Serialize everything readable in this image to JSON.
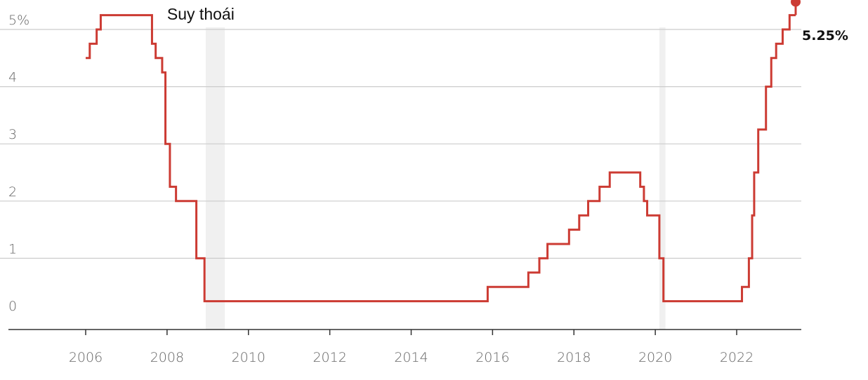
{
  "chart_data": {
    "type": "line",
    "line_shape": "step",
    "y_unit_suffix": "%",
    "ylim": [
      0,
      5.25
    ],
    "xlim": [
      2004.6,
      2024.1
    ],
    "y_ticks": [
      0,
      1,
      2,
      3,
      4,
      5
    ],
    "y_tick_labels": [
      "0",
      "1",
      "2",
      "3",
      "4",
      "5%"
    ],
    "x_ticks": [
      2006,
      2008,
      2010,
      2012,
      2014,
      2016,
      2018,
      2020,
      2022
    ],
    "x_tick_labels": [
      "2006",
      "2008",
      "2010",
      "2012",
      "2014",
      "2016",
      "2018",
      "2020",
      "2022"
    ],
    "grid": "horizontal",
    "colors": {
      "line": "#cc3b33",
      "grid": "#cccccc",
      "shade": "#f0f0f0",
      "axis": "#333333"
    },
    "recessions": [
      {
        "label": "Suy thoái",
        "start": 2008.95,
        "end": 2009.42
      },
      {
        "label": "",
        "start": 2020.1,
        "end": 2020.25
      }
    ],
    "series": [
      {
        "name": "",
        "x": [
          2006.0,
          2006.1,
          2006.27,
          2006.37,
          2007.63,
          2007.72,
          2007.88,
          2007.96,
          2008.07,
          2008.22,
          2008.72,
          2008.92,
          2015.88,
          2016.88,
          2017.15,
          2017.35,
          2017.88,
          2018.13,
          2018.35,
          2018.63,
          2018.88,
          2019.63,
          2019.72,
          2019.8,
          2020.1,
          2020.2,
          2022.13,
          2022.3,
          2022.38,
          2022.43,
          2022.53,
          2022.72,
          2022.85,
          2022.97,
          2023.13,
          2023.3,
          2023.45
        ],
        "y": [
          4.5,
          4.75,
          5.0,
          5.25,
          4.75,
          4.5,
          4.25,
          3.0,
          2.25,
          2.0,
          1.0,
          0.25,
          0.5,
          0.75,
          1.0,
          1.25,
          1.5,
          1.75,
          2.0,
          2.25,
          2.5,
          2.25,
          2.0,
          1.75,
          1.0,
          0.25,
          0.5,
          1.0,
          1.75,
          2.5,
          3.25,
          4.0,
          4.5,
          4.75,
          5.0,
          5.25,
          5.25
        ]
      }
    ],
    "end_label": "5.25%"
  }
}
